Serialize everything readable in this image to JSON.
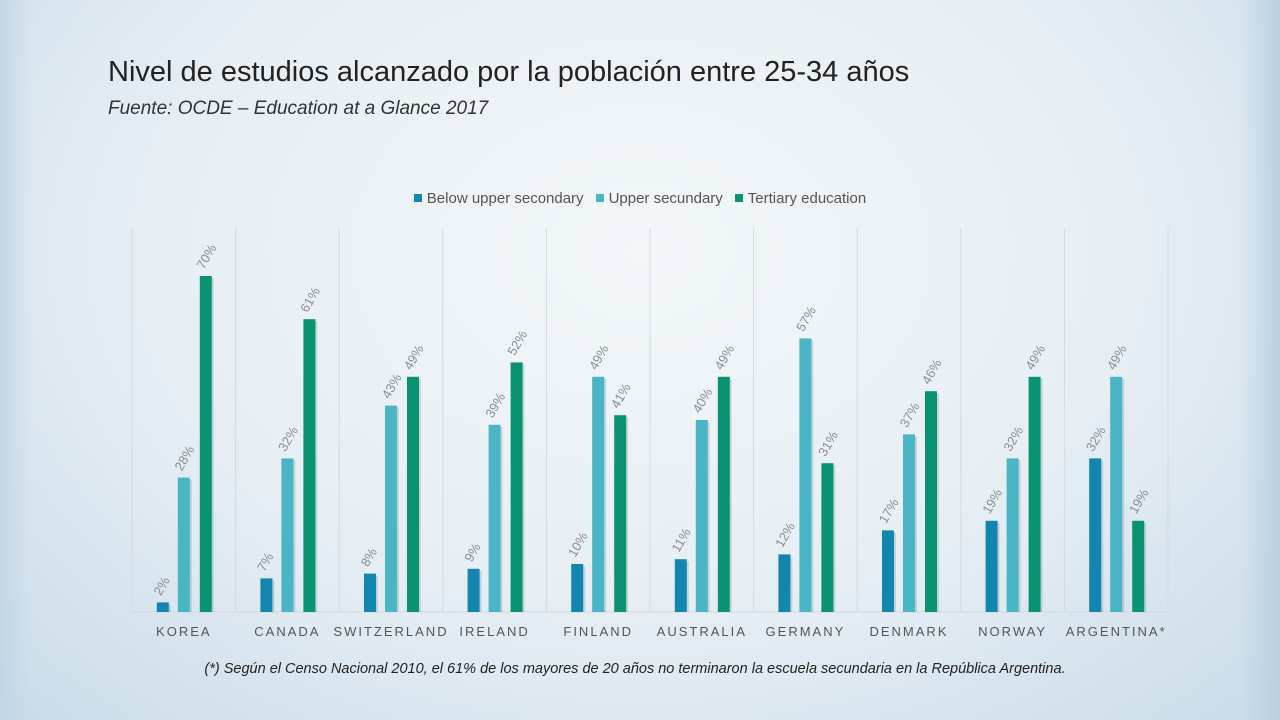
{
  "title": "Nivel de estudios alcanzado por la población entre 25-34 años",
  "subtitle": "Fuente: OCDE – Education at a Glance 2017",
  "footnote": "(*) Según el Censo Nacional 2010, el 61% de los mayores de 20 años no terminaron la escuela secundaria en la República Argentina.",
  "chart_data": {
    "type": "bar",
    "title": "Nivel de estudios alcanzado por la población entre 25-34 años",
    "categories": [
      "KOREA",
      "CANADA",
      "SWITZERLAND",
      "IRELAND",
      "FINLAND",
      "AUSTRALIA",
      "GERMANY",
      "DENMARK",
      "NORWAY",
      "ARGENTINA*"
    ],
    "series": [
      {
        "name": "Below upper secondary",
        "color": "#1386b0",
        "values": [
          2,
          7,
          8,
          9,
          10,
          11,
          12,
          17,
          19,
          32
        ]
      },
      {
        "name": "Upper secundary",
        "color": "#4ab5c4",
        "values": [
          28,
          32,
          43,
          39,
          49,
          40,
          57,
          37,
          32,
          49
        ]
      },
      {
        "name": "Tertiary education",
        "color": "#0a9373",
        "values": [
          70,
          61,
          49,
          52,
          41,
          49,
          31,
          46,
          49,
          19
        ]
      }
    ],
    "value_format": "%",
    "ylim": [
      0,
      80
    ],
    "legend": "top",
    "grid": "vertical category separators",
    "data_labels": true
  }
}
